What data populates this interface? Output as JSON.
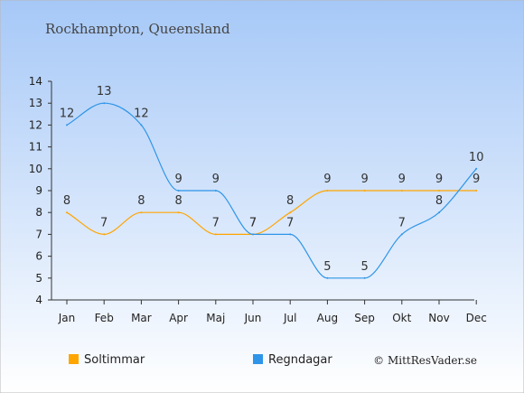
{
  "chart_data": {
    "type": "line",
    "title": "Rockhampton, Queensland",
    "xlabel": "",
    "ylabel": "",
    "categories": [
      "Jan",
      "Feb",
      "Mar",
      "Apr",
      "Maj",
      "Jun",
      "Jul",
      "Aug",
      "Sep",
      "Okt",
      "Nov",
      "Dec"
    ],
    "yticks": [
      4,
      5,
      6,
      7,
      8,
      9,
      10,
      11,
      12,
      13,
      14
    ],
    "ylim": [
      4,
      14
    ],
    "grid": false,
    "legend": "bottom-left",
    "series": [
      {
        "name": "Soltimmar",
        "color": "#ffa500",
        "values": [
          8,
          7,
          8,
          8,
          7,
          7,
          8,
          9,
          9,
          9,
          9,
          9
        ]
      },
      {
        "name": "Regndagar",
        "color": "#2e95e8",
        "values": [
          12,
          13,
          12,
          9,
          9,
          7,
          7,
          5,
          5,
          7,
          8,
          10
        ]
      }
    ],
    "credit": "© MittResVader.se",
    "background_top": "#a6c8f7",
    "background_bottom": "#ffffff"
  }
}
